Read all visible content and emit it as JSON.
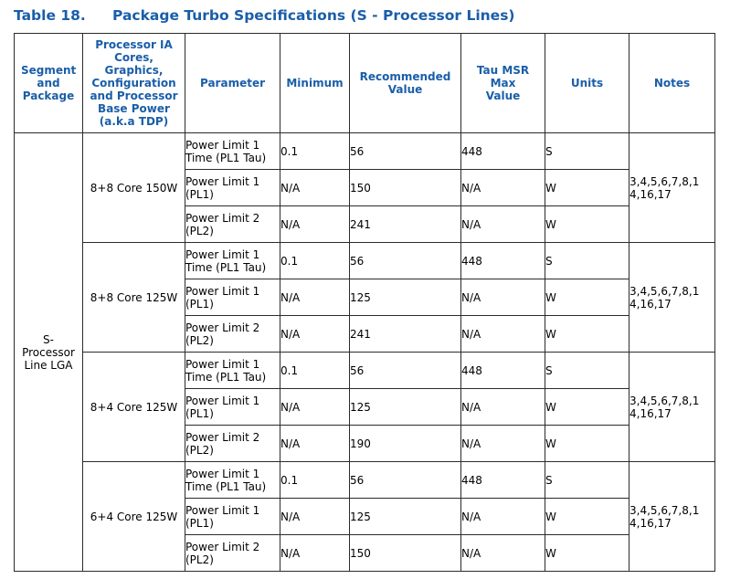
{
  "caption": {
    "number": "Table 18.",
    "title": "Package Turbo Specifications (S - Processor Lines)"
  },
  "header": {
    "segment": "Segment and Package",
    "cores": "Processor IA Cores, Graphics, Configuration and Processor Base Power (a.k.a TDP)",
    "parameter": "Parameter",
    "minimum": "Minimum",
    "recommended": "Recommended Value",
    "tau_max": "Tau MSR Max Value",
    "units": "Units",
    "notes": "Notes"
  },
  "segment": "S-Processor Line LGA",
  "groups": [
    {
      "config": "8+8 Core 150W",
      "notes": "3,4,5,6,7,8,14,16,17",
      "rows": [
        {
          "parameter": "Power Limit 1 Time (PL1 Tau)",
          "minimum": "0.1",
          "recommended": "56",
          "tau_max": "448",
          "units": "S"
        },
        {
          "parameter": "Power Limit 1 (PL1)",
          "minimum": "N/A",
          "recommended": "150",
          "tau_max": "N/A",
          "units": "W"
        },
        {
          "parameter": "Power Limit 2 (PL2)",
          "minimum": "N/A",
          "recommended": "241",
          "tau_max": "N/A",
          "units": "W"
        }
      ]
    },
    {
      "config": "8+8 Core 125W",
      "notes": "3,4,5,6,7,8,14,16,17",
      "rows": [
        {
          "parameter": "Power Limit 1 Time (PL1 Tau)",
          "minimum": "0.1",
          "recommended": "56",
          "tau_max": "448",
          "units": "S"
        },
        {
          "parameter": "Power Limit 1 (PL1)",
          "minimum": "N/A",
          "recommended": "125",
          "tau_max": "N/A",
          "units": "W"
        },
        {
          "parameter": "Power Limit 2 (PL2)",
          "minimum": "N/A",
          "recommended": "241",
          "tau_max": "N/A",
          "units": "W"
        }
      ]
    },
    {
      "config": "8+4 Core 125W",
      "notes": "3,4,5,6,7,8,14,16,17",
      "rows": [
        {
          "parameter": "Power Limit 1 Time (PL1 Tau)",
          "minimum": "0.1",
          "recommended": "56",
          "tau_max": "448",
          "units": "S"
        },
        {
          "parameter": "Power Limit 1 (PL1)",
          "minimum": "N/A",
          "recommended": "125",
          "tau_max": "N/A",
          "units": "W"
        },
        {
          "parameter": "Power Limit 2 (PL2)",
          "minimum": "N/A",
          "recommended": "190",
          "tau_max": "N/A",
          "units": "W"
        }
      ]
    },
    {
      "config": "6+4 Core 125W",
      "notes": "3,4,5,6,7,8,14,16,17",
      "rows": [
        {
          "parameter": "Power Limit 1 Time (PL1 Tau)",
          "minimum": "0.1",
          "recommended": "56",
          "tau_max": "448",
          "units": "S"
        },
        {
          "parameter": "Power Limit 1 (PL1)",
          "minimum": "N/A",
          "recommended": "125",
          "tau_max": "N/A",
          "units": "W"
        },
        {
          "parameter": "Power Limit 2 (PL2)",
          "minimum": "N/A",
          "recommended": "150",
          "tau_max": "N/A",
          "units": "W"
        }
      ]
    }
  ]
}
